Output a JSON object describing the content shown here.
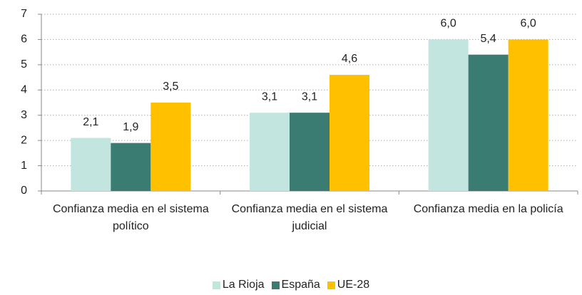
{
  "chart_data": {
    "type": "bar",
    "categories": [
      "Confianza media en el sistema político",
      "Confianza media en el sistema judicial",
      "Confianza media en la policía"
    ],
    "series": [
      {
        "name": "La Rioja",
        "color": "#c3e5e0",
        "values": [
          2.1,
          3.1,
          6.0
        ],
        "value_labels": [
          "2,1",
          "3,1",
          "6,0"
        ]
      },
      {
        "name": "España",
        "color": "#3a7b72",
        "values": [
          1.9,
          3.1,
          5.4
        ],
        "value_labels": [
          "1,9",
          "3,1",
          "5,4"
        ]
      },
      {
        "name": "UE-28",
        "color": "#ffc000",
        "values": [
          3.5,
          4.6,
          6.0
        ],
        "value_labels": [
          "3,5",
          "4,6",
          "6,0"
        ]
      }
    ],
    "ylim": [
      0,
      7
    ],
    "yticks": [
      0,
      1,
      2,
      3,
      4,
      5,
      6,
      7
    ],
    "grid": true
  }
}
